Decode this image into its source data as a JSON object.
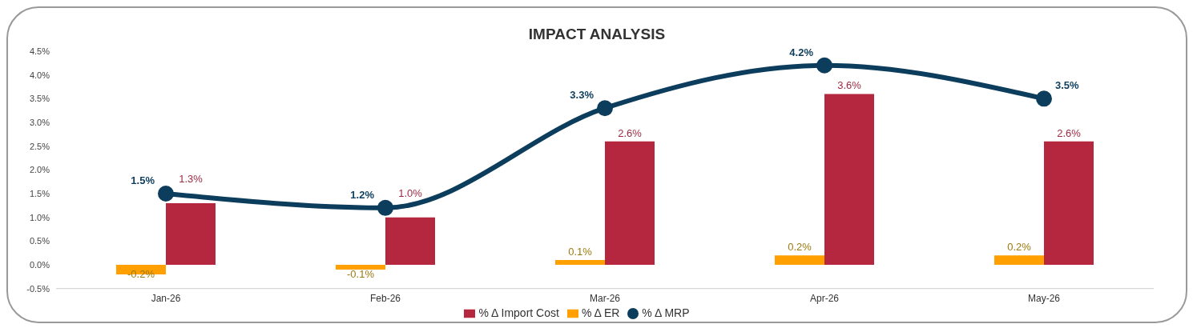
{
  "chart_data": {
    "type": "bar",
    "title": "IMPACT ANALYSIS",
    "categories": [
      "Jan-26",
      "Feb-26",
      "Mar-26",
      "Apr-26",
      "May-26"
    ],
    "series": [
      {
        "name": "% Δ ER",
        "color": "#ffa000",
        "values": [
          -0.2,
          -0.1,
          0.1,
          0.2,
          0.2
        ],
        "value_labels": [
          "-0.2%",
          "-0.1%",
          "0.1%",
          "0.2%",
          "0.2%"
        ]
      },
      {
        "name": "% Δ  Import Cost",
        "color": "#b5263f",
        "values": [
          1.3,
          1.0,
          2.6,
          3.6,
          2.6
        ],
        "value_labels": [
          "1.3%",
          "1.0%",
          "2.6%",
          "3.6%",
          "2.6%"
        ]
      },
      {
        "name": "% Δ MRP",
        "type": "line",
        "color": "#0d3d5c",
        "values": [
          1.5,
          1.2,
          3.3,
          4.2,
          3.5
        ],
        "value_labels": [
          "1.5%",
          "1.2%",
          "3.3%",
          "4.2%",
          "3.5%"
        ]
      }
    ],
    "ylim": [
      -0.5,
      4.5
    ],
    "yticks": [
      {
        "value": -0.5,
        "label": "-0.5%"
      },
      {
        "value": 0,
        "label": "0.0%"
      },
      {
        "value": 0.5,
        "label": "0.5%"
      },
      {
        "value": 1,
        "label": "1.0%"
      },
      {
        "value": 1.5,
        "label": "1.5%"
      },
      {
        "value": 2,
        "label": "2.0%"
      },
      {
        "value": 2.5,
        "label": "2.5%"
      },
      {
        "value": 3,
        "label": "3.0%"
      },
      {
        "value": 3.5,
        "label": "3.5%"
      },
      {
        "value": 4,
        "label": "4.0%"
      },
      {
        "value": 4.5,
        "label": "4.5%"
      }
    ],
    "legend": "bottom",
    "marker": "circle",
    "line_style": "solid",
    "grid": false
  }
}
